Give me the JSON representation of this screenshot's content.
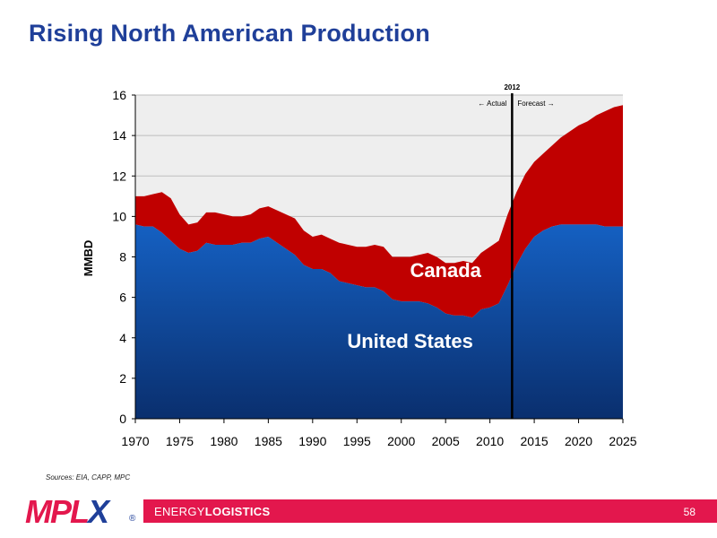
{
  "slide": {
    "title": "Rising North American Production",
    "sources": "Sources:  EIA, CAPP, MPC",
    "page_number": "58"
  },
  "branding": {
    "logo_text_a": "MPL",
    "logo_text_b": "X",
    "registered": "®",
    "tagline_light": "ENERGY",
    "tagline_bold": "LOGISTICS",
    "brand_red": "#e3174d",
    "brand_blue": "#1f3f99"
  },
  "chart_data": {
    "type": "area",
    "stacked": true,
    "title": "",
    "xlabel": "",
    "ylabel": "MMBD",
    "xlim": [
      1970,
      2025
    ],
    "ylim": [
      0,
      16
    ],
    "xticks": [
      1970,
      1975,
      1980,
      1985,
      1990,
      1995,
      2000,
      2005,
      2010,
      2015,
      2020,
      2025
    ],
    "yticks": [
      0,
      2,
      4,
      6,
      8,
      10,
      12,
      14,
      16
    ],
    "grid": "horizontal",
    "x": [
      1970,
      1971,
      1972,
      1973,
      1974,
      1975,
      1976,
      1977,
      1978,
      1979,
      1980,
      1981,
      1982,
      1983,
      1984,
      1985,
      1986,
      1987,
      1988,
      1989,
      1990,
      1991,
      1992,
      1993,
      1994,
      1995,
      1996,
      1997,
      1998,
      1999,
      2000,
      2001,
      2002,
      2003,
      2004,
      2005,
      2006,
      2007,
      2008,
      2009,
      2010,
      2011,
      2012,
      2013,
      2014,
      2015,
      2016,
      2017,
      2018,
      2019,
      2020,
      2021,
      2022,
      2023,
      2024,
      2025
    ],
    "series": [
      {
        "name": "United States",
        "color": "#1255b8",
        "values": [
          9.6,
          9.5,
          9.5,
          9.2,
          8.8,
          8.4,
          8.2,
          8.3,
          8.7,
          8.6,
          8.6,
          8.6,
          8.7,
          8.7,
          8.9,
          9.0,
          8.7,
          8.4,
          8.1,
          7.6,
          7.4,
          7.4,
          7.2,
          6.8,
          6.7,
          6.6,
          6.5,
          6.5,
          6.3,
          5.9,
          5.8,
          5.8,
          5.8,
          5.7,
          5.5,
          5.2,
          5.1,
          5.1,
          5.0,
          5.4,
          5.5,
          5.7,
          6.6,
          7.6,
          8.4,
          9.0,
          9.3,
          9.5,
          9.6,
          9.6,
          9.6,
          9.6,
          9.6,
          9.5,
          9.5,
          9.5
        ]
      },
      {
        "name": "Canada",
        "color": "#c00000",
        "values": [
          1.4,
          1.5,
          1.6,
          2.0,
          2.1,
          1.7,
          1.4,
          1.4,
          1.5,
          1.6,
          1.5,
          1.4,
          1.3,
          1.4,
          1.5,
          1.5,
          1.6,
          1.7,
          1.8,
          1.7,
          1.6,
          1.7,
          1.7,
          1.9,
          1.9,
          1.9,
          2.0,
          2.1,
          2.2,
          2.1,
          2.2,
          2.2,
          2.3,
          2.5,
          2.5,
          2.5,
          2.6,
          2.7,
          2.7,
          2.8,
          3.0,
          3.1,
          3.5,
          3.6,
          3.7,
          3.7,
          3.8,
          4.0,
          4.3,
          4.6,
          4.9,
          5.1,
          5.4,
          5.7,
          5.9,
          6.0
        ]
      }
    ],
    "annotations": {
      "divider_year": 2012.5,
      "divider_label": "2012",
      "actual_label": "← Actual",
      "forecast_label": "Forecast →"
    },
    "series_labels": [
      {
        "text": "Canada",
        "x": 2005,
        "y": 7.0,
        "color": "#ffffff"
      },
      {
        "text": "United States",
        "x": 2001,
        "y": 3.5,
        "color": "#ffffff"
      }
    ]
  }
}
